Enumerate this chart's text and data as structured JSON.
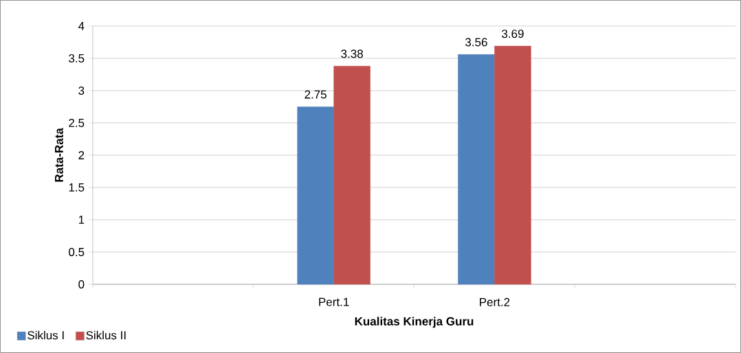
{
  "chart_data": {
    "type": "bar",
    "xlabel": "Kualitas Kinerja Guru",
    "ylabel": "Rata-Rata",
    "categories": [
      null,
      "Pert.1",
      "Pert.2",
      null
    ],
    "series": [
      {
        "name": "Siklus I",
        "color": "#4f81bd",
        "values": [
          null,
          2.75,
          3.56,
          null
        ]
      },
      {
        "name": "Siklus II",
        "color": "#c0504d",
        "values": [
          null,
          3.38,
          3.69,
          null
        ]
      }
    ],
    "ylim": [
      0,
      4
    ],
    "yticks": [
      0,
      0.5,
      1,
      1.5,
      2,
      2.5,
      3,
      3.5,
      4
    ],
    "grid": "y",
    "legend": "bottom left",
    "data_labels": true
  }
}
